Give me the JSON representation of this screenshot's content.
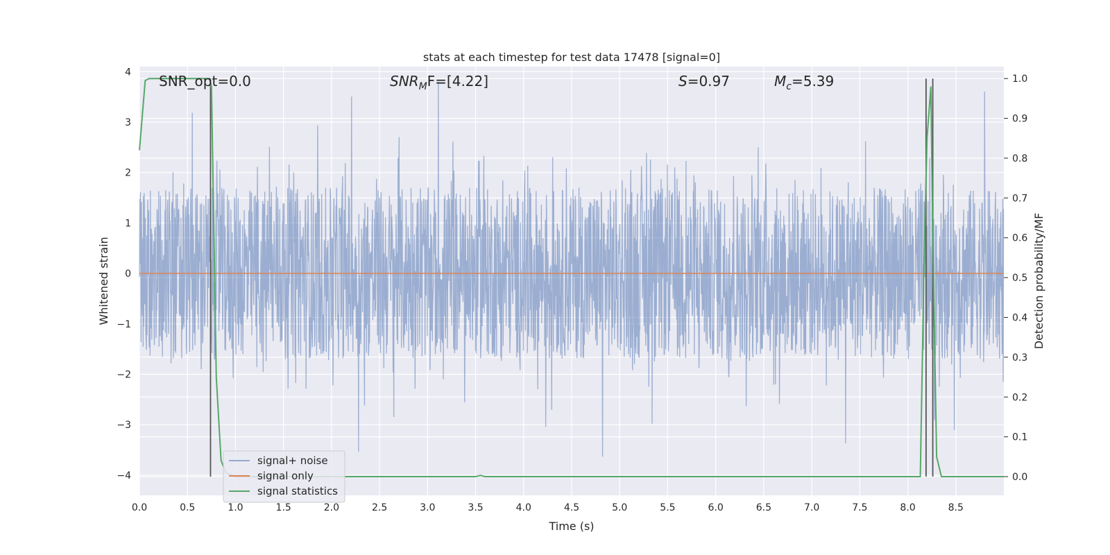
{
  "chart_data": {
    "type": "line",
    "title": "stats at each timestep for test data 17478 [signal=0]",
    "xlabel": "Time (s)",
    "ylabel": "Whitened strain",
    "ylabel_right": "Detection probability/MF",
    "xlim": [
      0.0,
      9.0
    ],
    "ylim": [
      -4.4,
      4.1
    ],
    "ylim_right": [
      -0.047,
      1.03
    ],
    "x_ticks": [
      "0.0",
      "0.5",
      "1.0",
      "1.5",
      "2.0",
      "2.5",
      "3.0",
      "3.5",
      "4.0",
      "4.5",
      "5.0",
      "5.5",
      "6.0",
      "6.5",
      "7.0",
      "7.5",
      "8.0",
      "8.5"
    ],
    "x_tick_values": [
      0,
      0.5,
      1,
      1.5,
      2,
      2.5,
      3,
      3.5,
      4,
      4.5,
      5,
      5.5,
      6,
      6.5,
      7,
      7.5,
      8,
      8.5
    ],
    "y_ticks": [
      "4",
      "3",
      "2",
      "1",
      "0",
      "−1",
      "−2",
      "−3",
      "−4"
    ],
    "y_tick_values": [
      4,
      3,
      2,
      1,
      0,
      -1,
      -2,
      -3,
      -4
    ],
    "y_right_ticks": [
      "1.0",
      "0.9",
      "0.8",
      "0.7",
      "0.6",
      "0.5",
      "0.4",
      "0.3",
      "0.2",
      "0.1",
      "0.0"
    ],
    "y_right_tick_values": [
      1.0,
      0.9,
      0.8,
      0.7,
      0.6,
      0.5,
      0.4,
      0.3,
      0.2,
      0.1,
      0.0
    ],
    "grid": true,
    "legend_position": "lower-left",
    "annotations": {
      "snr_opt": "SNR_opt=0.0",
      "snr_mf_var": "SNR",
      "snr_mf_sub": "M",
      "snr_mf_rest": "F=[4.22]",
      "s_var": "S",
      "s_rest": "=0.97",
      "mc_var": "M",
      "mc_sub": "c",
      "mc_rest": "=5.39"
    },
    "series": [
      {
        "name": "signal+ noise",
        "axis": "left",
        "color": "#4c72b0",
        "opacity": 0.5,
        "description": "whitened strain, noise only; mostly within ±2, peaks up to about ±3.9",
        "envelope_typical": [
          -1.7,
          1.7
        ],
        "max": 3.9,
        "min": -3.9
      },
      {
        "name": "signal only",
        "axis": "left",
        "color": "#dd8452",
        "x": [
          0.0,
          9.0
        ],
        "y": [
          0.0,
          0.0
        ]
      },
      {
        "name": "signal statistics",
        "axis": "right",
        "color": "#55a868",
        "x": [
          0.0,
          0.06,
          0.1,
          0.5,
          0.73,
          0.75,
          0.8,
          0.85,
          0.9,
          1.0,
          2.0,
          3.5,
          3.55,
          3.6,
          4.0,
          6.0,
          8.0,
          8.13,
          8.17,
          8.2,
          8.24,
          8.26,
          8.3,
          8.35,
          9.0
        ],
        "y": [
          0.82,
          0.995,
          1.0,
          1.0,
          1.0,
          0.98,
          0.25,
          0.04,
          0.01,
          0.0,
          0.0,
          0.0,
          0.003,
          0.0,
          0.0,
          0.0,
          0.0,
          0.0,
          0.55,
          0.85,
          0.98,
          0.6,
          0.05,
          0.0,
          0.0
        ]
      }
    ],
    "vertical_lines": [
      {
        "x": 0.74,
        "y_from": 0.0,
        "y_to": 1.0,
        "color": "#555555"
      },
      {
        "x": 8.19,
        "y_from": 0.0,
        "y_to": 1.0,
        "color": "#555555"
      },
      {
        "x": 8.26,
        "y_from": 0.0,
        "y_to": 1.0,
        "color": "#555555"
      }
    ]
  }
}
